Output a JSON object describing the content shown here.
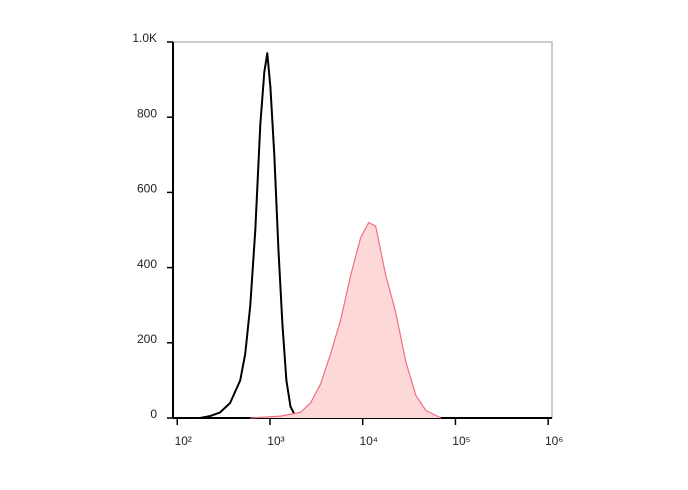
{
  "chart_data": {
    "type": "line",
    "xscale": "log",
    "xlim": [
      90,
      1100000
    ],
    "ylim": [
      0,
      1000
    ],
    "xticks": [
      {
        "value": 100,
        "label": "10²"
      },
      {
        "value": 1000,
        "label": "10³"
      },
      {
        "value": 10000,
        "label": "10⁴"
      },
      {
        "value": 100000,
        "label": "10⁵"
      },
      {
        "value": 1000000,
        "label": "10⁶"
      }
    ],
    "yticks": [
      0,
      200,
      400,
      600,
      800,
      {
        "value": 1000,
        "label": "1.0K"
      }
    ],
    "series": [
      {
        "color": "#000000",
        "fill": null,
        "x": [
          176,
          226,
          290,
          372,
          478,
          541,
          613,
          694,
          786,
          869,
          936,
          1010,
          1114,
          1232,
          1362,
          1505,
          1663,
          1882,
          2130
        ],
        "values": [
          0,
          5,
          15,
          40,
          100,
          170,
          300,
          500,
          780,
          920,
          970,
          880,
          700,
          450,
          250,
          100,
          30,
          5,
          0
        ]
      },
      {
        "color": "#f07080",
        "fill": "#fcd8d8",
        "x": [
          613,
          1295,
          2130,
          2735,
          3510,
          4500,
          5778,
          7416,
          9506,
          11600,
          13815,
          17712,
          22761,
          29187,
          37431,
          48000,
          69840
        ],
        "values": [
          0,
          5,
          15,
          40,
          90,
          170,
          260,
          380,
          480,
          520,
          510,
          380,
          280,
          150,
          60,
          20,
          0
        ]
      }
    ]
  }
}
